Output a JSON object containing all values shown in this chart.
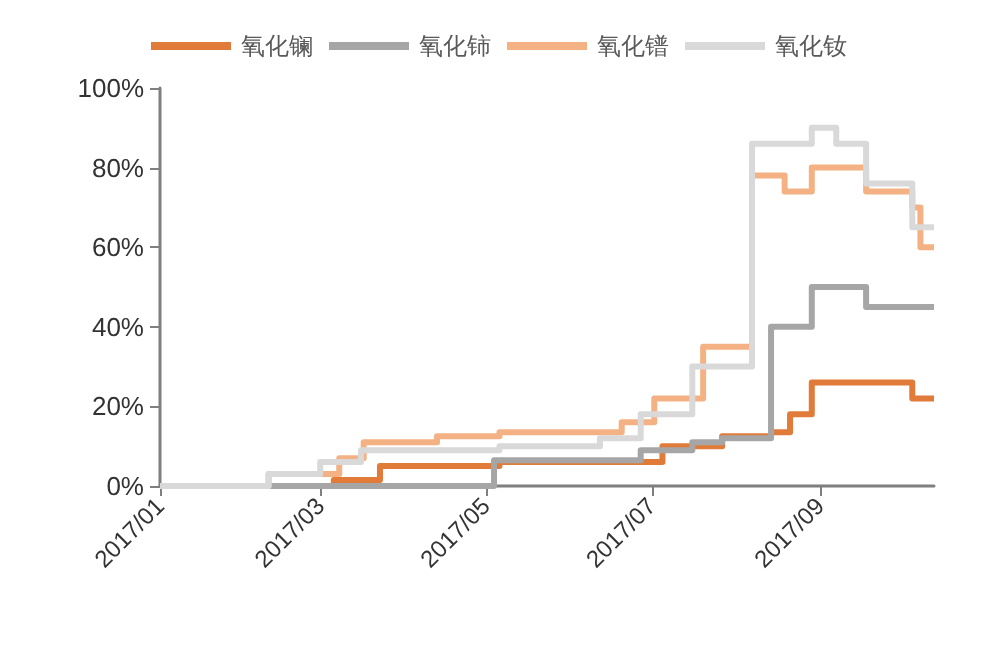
{
  "chart_data": {
    "type": "step",
    "xlim": [
      "2017-01-01",
      "2017-10-13"
    ],
    "xticks": [
      {
        "value": "2017-01-01",
        "label": "2017/01"
      },
      {
        "value": "2017-03-01",
        "label": "2017/03"
      },
      {
        "value": "2017-05-01",
        "label": "2017/05"
      },
      {
        "value": "2017-07-01",
        "label": "2017/07"
      },
      {
        "value": "2017-09-01",
        "label": "2017/09"
      }
    ],
    "ylim": [
      0,
      100
    ],
    "yticks": [
      {
        "value": 0,
        "label": "0%"
      },
      {
        "value": 20,
        "label": "20%"
      },
      {
        "value": 40,
        "label": "40%"
      },
      {
        "value": 60,
        "label": "60%"
      },
      {
        "value": 80,
        "label": "80%"
      },
      {
        "value": 100,
        "label": "100%"
      }
    ],
    "grid": false,
    "legend": "top",
    "marker": "none",
    "series": [
      {
        "name": "氧化镧",
        "color": "#e07b39",
        "x": [
          "2017-01-01",
          "2017-03-06",
          "2017-03-23",
          "2017-05-06",
          "2017-07-05",
          "2017-07-27",
          "2017-08-14",
          "2017-08-21",
          "2017-08-29",
          "2017-10-05",
          "2017-10-13"
        ],
        "values": [
          0,
          1.5,
          5,
          6,
          10,
          12.5,
          13.5,
          18,
          26,
          22,
          22
        ]
      },
      {
        "name": "氧化铈",
        "color": "#a6a6a6",
        "x": [
          "2017-01-01",
          "2017-05-04",
          "2017-06-27",
          "2017-07-16",
          "2017-07-27",
          "2017-08-14",
          "2017-08-29",
          "2017-09-18",
          "2017-10-13"
        ],
        "values": [
          0,
          6.5,
          9,
          11,
          12,
          40,
          50,
          45,
          45
        ]
      },
      {
        "name": "氧化镨",
        "color": "#f4b183",
        "x": [
          "2017-01-01",
          "2017-02-10",
          "2017-03-08",
          "2017-03-17",
          "2017-04-13",
          "2017-05-06",
          "2017-06-20",
          "2017-07-02",
          "2017-07-20",
          "2017-08-07",
          "2017-08-19",
          "2017-08-29",
          "2017-09-18",
          "2017-10-05",
          "2017-10-08",
          "2017-10-13"
        ],
        "values": [
          0,
          3,
          7,
          11,
          12.5,
          13.5,
          16,
          22,
          35,
          78,
          74,
          80,
          74,
          70,
          60,
          60
        ]
      },
      {
        "name": "氧化钕",
        "color": "#d9d9d9",
        "x": [
          "2017-01-01",
          "2017-02-10",
          "2017-03-01",
          "2017-03-16",
          "2017-05-06",
          "2017-06-12",
          "2017-06-27",
          "2017-07-16",
          "2017-08-07",
          "2017-08-29",
          "2017-09-07",
          "2017-09-18",
          "2017-10-05",
          "2017-10-13"
        ],
        "values": [
          0,
          3,
          6,
          9,
          10,
          12,
          18,
          30,
          86,
          90,
          86,
          76,
          65,
          65
        ]
      }
    ]
  }
}
